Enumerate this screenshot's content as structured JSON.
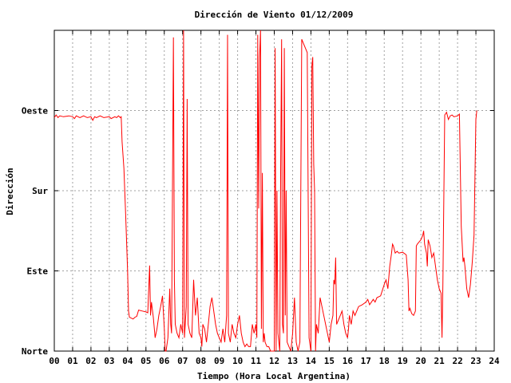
{
  "chart_data": {
    "type": "line",
    "title": "Dirección de Viento 01/12/2009",
    "xlabel": "Tiempo (Hora Local Argentina)",
    "ylabel": "Dirección",
    "xlim": [
      0,
      24
    ],
    "ylim": [
      0,
      360
    ],
    "x_ticks": [
      "00",
      "01",
      "02",
      "03",
      "04",
      "05",
      "06",
      "07",
      "08",
      "09",
      "10",
      "11",
      "12",
      "13",
      "14",
      "15",
      "16",
      "17",
      "18",
      "19",
      "20",
      "21",
      "22",
      "23",
      "24"
    ],
    "y_ticks": [
      {
        "label": "Norte",
        "value": 0
      },
      {
        "label": "Este",
        "value": 90
      },
      {
        "label": "Sur",
        "value": 180
      },
      {
        "label": "Oeste",
        "value": 270
      }
    ],
    "grid": true,
    "legend": "none",
    "series": [
      {
        "color": "#ff0000",
        "points": [
          [
            0.0,
            262
          ],
          [
            0.1,
            265
          ],
          [
            0.2,
            262
          ],
          [
            0.3,
            264
          ],
          [
            0.5,
            263
          ],
          [
            0.8,
            264
          ],
          [
            1.0,
            263
          ],
          [
            1.1,
            261
          ],
          [
            1.2,
            264
          ],
          [
            1.4,
            262
          ],
          [
            1.6,
            264
          ],
          [
            1.8,
            262
          ],
          [
            2.0,
            263
          ],
          [
            2.1,
            259
          ],
          [
            2.2,
            263
          ],
          [
            2.3,
            262
          ],
          [
            2.5,
            264
          ],
          [
            2.7,
            262
          ],
          [
            3.0,
            263
          ],
          [
            3.1,
            261
          ],
          [
            3.3,
            263
          ],
          [
            3.4,
            262
          ],
          [
            3.5,
            264
          ],
          [
            3.6,
            262
          ],
          [
            3.65,
            263
          ],
          [
            3.7,
            235
          ],
          [
            3.8,
            205
          ],
          [
            3.9,
            150
          ],
          [
            4.0,
            90
          ],
          [
            4.05,
            45
          ],
          [
            4.1,
            38
          ],
          [
            4.2,
            37
          ],
          [
            4.3,
            36
          ],
          [
            4.4,
            38
          ],
          [
            4.5,
            39
          ],
          [
            4.6,
            46
          ],
          [
            4.8,
            45
          ],
          [
            5.0,
            44
          ],
          [
            5.1,
            43
          ],
          [
            5.2,
            96
          ],
          [
            5.25,
            40
          ],
          [
            5.3,
            55
          ],
          [
            5.4,
            38
          ],
          [
            5.5,
            15
          ],
          [
            5.6,
            25
          ],
          [
            5.7,
            40
          ],
          [
            5.8,
            50
          ],
          [
            5.9,
            62
          ],
          [
            6.0,
            25
          ],
          [
            6.05,
            0
          ],
          [
            6.1,
            0
          ],
          [
            6.2,
            15
          ],
          [
            6.3,
            70
          ],
          [
            6.35,
            30
          ],
          [
            6.4,
            20
          ],
          [
            6.5,
            352
          ],
          [
            6.55,
            80
          ],
          [
            6.6,
            30
          ],
          [
            6.7,
            20
          ],
          [
            6.8,
            15
          ],
          [
            6.9,
            30
          ],
          [
            7.0,
            20
          ],
          [
            7.05,
            360
          ],
          [
            7.1,
            15
          ],
          [
            7.2,
            50
          ],
          [
            7.25,
            283
          ],
          [
            7.3,
            30
          ],
          [
            7.4,
            20
          ],
          [
            7.5,
            15
          ],
          [
            7.6,
            80
          ],
          [
            7.7,
            40
          ],
          [
            7.8,
            60
          ],
          [
            7.9,
            20
          ],
          [
            8.0,
            15
          ],
          [
            8.05,
            5
          ],
          [
            8.1,
            30
          ],
          [
            8.2,
            25
          ],
          [
            8.3,
            10
          ],
          [
            8.4,
            30
          ],
          [
            8.5,
            50
          ],
          [
            8.6,
            60
          ],
          [
            8.7,
            45
          ],
          [
            8.8,
            30
          ],
          [
            8.9,
            20
          ],
          [
            9.0,
            15
          ],
          [
            9.1,
            10
          ],
          [
            9.2,
            25
          ],
          [
            9.3,
            10
          ],
          [
            9.4,
            40
          ],
          [
            9.45,
            355
          ],
          [
            9.5,
            20
          ],
          [
            9.6,
            10
          ],
          [
            9.7,
            30
          ],
          [
            9.8,
            20
          ],
          [
            9.9,
            15
          ],
          [
            10.0,
            30
          ],
          [
            10.1,
            40
          ],
          [
            10.2,
            20
          ],
          [
            10.3,
            10
          ],
          [
            10.4,
            5
          ],
          [
            10.5,
            8
          ],
          [
            10.6,
            5
          ],
          [
            10.7,
            5
          ],
          [
            10.8,
            30
          ],
          [
            10.9,
            20
          ],
          [
            11.0,
            30
          ],
          [
            11.05,
            15
          ],
          [
            11.1,
            355
          ],
          [
            11.15,
            160
          ],
          [
            11.2,
            330
          ],
          [
            11.25,
            360
          ],
          [
            11.3,
            25
          ],
          [
            11.35,
            200
          ],
          [
            11.4,
            10
          ],
          [
            11.45,
            20
          ],
          [
            11.5,
            10
          ],
          [
            11.6,
            5
          ],
          [
            11.7,
            5
          ],
          [
            11.8,
            0
          ],
          [
            11.9,
            0
          ],
          [
            12.0,
            0
          ],
          [
            12.05,
            340
          ],
          [
            12.1,
            0
          ],
          [
            12.15,
            180
          ],
          [
            12.2,
            20
          ],
          [
            12.3,
            0
          ],
          [
            12.35,
            200
          ],
          [
            12.4,
            350
          ],
          [
            12.45,
            30
          ],
          [
            12.5,
            20
          ],
          [
            12.55,
            340
          ],
          [
            12.6,
            40
          ],
          [
            12.65,
            180
          ],
          [
            12.7,
            10
          ],
          [
            12.8,
            5
          ],
          [
            12.9,
            0
          ],
          [
            13.0,
            20
          ],
          [
            13.1,
            60
          ],
          [
            13.2,
            10
          ],
          [
            13.3,
            0
          ],
          [
            13.4,
            10
          ],
          [
            13.5,
            350
          ],
          [
            13.6,
            345
          ],
          [
            13.7,
            340
          ],
          [
            13.8,
            335
          ],
          [
            13.9,
            15
          ],
          [
            14.0,
            0
          ],
          [
            14.05,
            320
          ],
          [
            14.1,
            330
          ],
          [
            14.15,
            210
          ],
          [
            14.2,
            180
          ],
          [
            14.25,
            0
          ],
          [
            14.3,
            30
          ],
          [
            14.4,
            20
          ],
          [
            14.5,
            60
          ],
          [
            14.6,
            50
          ],
          [
            14.7,
            40
          ],
          [
            14.8,
            30
          ],
          [
            14.9,
            20
          ],
          [
            15.0,
            10
          ],
          [
            15.1,
            30
          ],
          [
            15.2,
            40
          ],
          [
            15.25,
            80
          ],
          [
            15.3,
            75
          ],
          [
            15.35,
            105
          ],
          [
            15.4,
            30
          ],
          [
            15.5,
            35
          ],
          [
            15.6,
            40
          ],
          [
            15.7,
            45
          ],
          [
            15.8,
            30
          ],
          [
            15.9,
            20
          ],
          [
            16.0,
            15
          ],
          [
            16.05,
            25
          ],
          [
            16.1,
            40
          ],
          [
            16.2,
            30
          ],
          [
            16.3,
            45
          ],
          [
            16.4,
            40
          ],
          [
            16.5,
            45
          ],
          [
            16.6,
            50
          ],
          [
            16.8,
            52
          ],
          [
            17.0,
            55
          ],
          [
            17.1,
            58
          ],
          [
            17.2,
            52
          ],
          [
            17.4,
            58
          ],
          [
            17.5,
            55
          ],
          [
            17.6,
            60
          ],
          [
            17.8,
            62
          ],
          [
            18.0,
            75
          ],
          [
            18.1,
            80
          ],
          [
            18.2,
            70
          ],
          [
            18.3,
            95
          ],
          [
            18.4,
            110
          ],
          [
            18.45,
            120
          ],
          [
            18.5,
            118
          ],
          [
            18.6,
            110
          ],
          [
            18.7,
            112
          ],
          [
            18.8,
            110
          ],
          [
            19.0,
            111
          ],
          [
            19.2,
            108
          ],
          [
            19.3,
            80
          ],
          [
            19.35,
            45
          ],
          [
            19.4,
            48
          ],
          [
            19.5,
            42
          ],
          [
            19.6,
            40
          ],
          [
            19.7,
            45
          ],
          [
            19.75,
            118
          ],
          [
            19.8,
            120
          ],
          [
            20.0,
            125
          ],
          [
            20.1,
            130
          ],
          [
            20.15,
            135
          ],
          [
            20.2,
            120
          ],
          [
            20.3,
            110
          ],
          [
            20.35,
            95
          ],
          [
            20.4,
            125
          ],
          [
            20.5,
            118
          ],
          [
            20.6,
            105
          ],
          [
            20.7,
            110
          ],
          [
            20.8,
            95
          ],
          [
            20.9,
            80
          ],
          [
            21.0,
            70
          ],
          [
            21.1,
            65
          ],
          [
            21.15,
            15
          ],
          [
            21.2,
            75
          ],
          [
            21.3,
            265
          ],
          [
            21.4,
            268
          ],
          [
            21.5,
            260
          ],
          [
            21.6,
            264
          ],
          [
            21.7,
            265
          ],
          [
            21.8,
            263
          ],
          [
            22.0,
            264
          ],
          [
            22.1,
            266
          ],
          [
            22.2,
            140
          ],
          [
            22.3,
            100
          ],
          [
            22.35,
            105
          ],
          [
            22.4,
            95
          ],
          [
            22.5,
            70
          ],
          [
            22.6,
            60
          ],
          [
            22.7,
            75
          ],
          [
            22.8,
            100
          ],
          [
            22.9,
            130
          ],
          [
            23.0,
            260
          ],
          [
            23.05,
            270
          ]
        ]
      }
    ]
  }
}
